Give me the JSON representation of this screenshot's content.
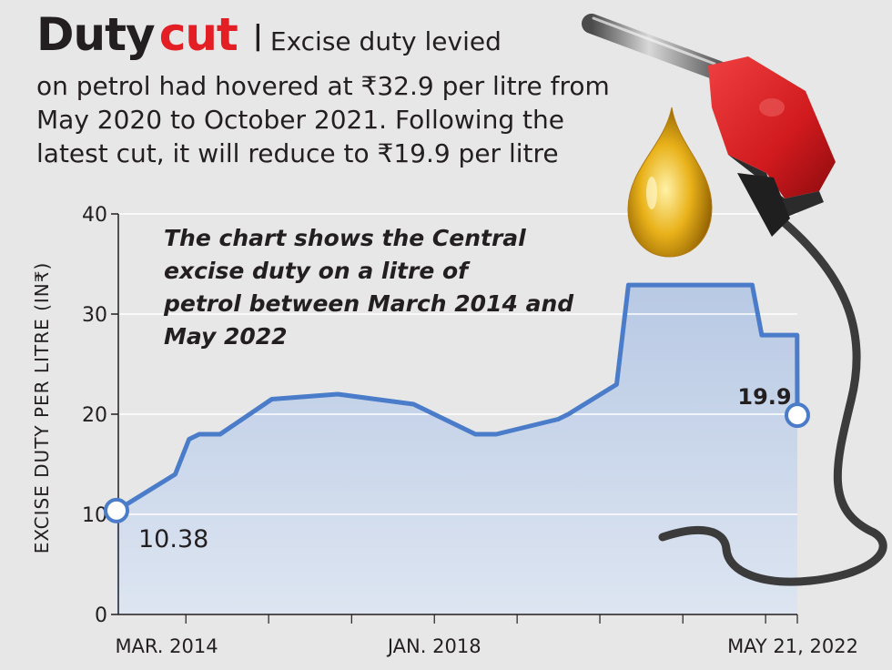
{
  "header": {
    "title_word1": "Duty",
    "title_word2": "cut",
    "separator": "|",
    "desc_first": "Excise duty levied",
    "desc_rest": "on petrol had hovered at ₹32.9 per litre from May 2020 to October 2021. Following the latest cut, it will reduce to ₹19.9 per litre"
  },
  "colors": {
    "accent": "#e31e24",
    "line": "#4a7cc9",
    "area_top": "#b8c9e4",
    "area_bottom": "#dde5f1",
    "background": "#e7e7e7"
  },
  "chart_data": {
    "type": "area",
    "annotation": "The chart shows the Central excise duty on a litre of petrol between March 2014 and May 2022",
    "xlabel": "",
    "ylabel": "EXCISE DUTY PER LITRE (IN₹)",
    "ylim": [
      0,
      40
    ],
    "yticks": [
      0,
      10,
      20,
      30,
      40
    ],
    "xlim": [
      "2014-03-01",
      "2022-05-21"
    ],
    "xtick_labels": [
      {
        "date": "2014-03-01",
        "label": "MAR. 2014"
      },
      {
        "date": "2018-01-01",
        "label": "JAN. 2018"
      },
      {
        "date": "2022-05-21",
        "label": "MAY 21, 2022"
      }
    ],
    "grid": true,
    "x": [
      "2014-03-01",
      "2014-11-15",
      "2015-01-15",
      "2015-03-01",
      "2015-06-01",
      "2016-01-15",
      "2016-11-01",
      "2017-10-01",
      "2018-07-01",
      "2018-10-01",
      "2019-07-01",
      "2019-08-15",
      "2020-03-15",
      "2020-05-06",
      "2021-11-03",
      "2021-12-15",
      "2022-05-20",
      "2022-05-21"
    ],
    "values": [
      10.38,
      14.0,
      17.5,
      18.0,
      18.0,
      21.5,
      22.0,
      21.0,
      18.0,
      18.0,
      19.5,
      20.0,
      22.98,
      32.9,
      32.9,
      27.9,
      27.9,
      19.9
    ],
    "point_labels": [
      {
        "date": "2014-03-01",
        "value": 10.38,
        "label": "10.38"
      },
      {
        "date": "2022-05-21",
        "value": 19.9,
        "label": "19.9"
      }
    ]
  }
}
